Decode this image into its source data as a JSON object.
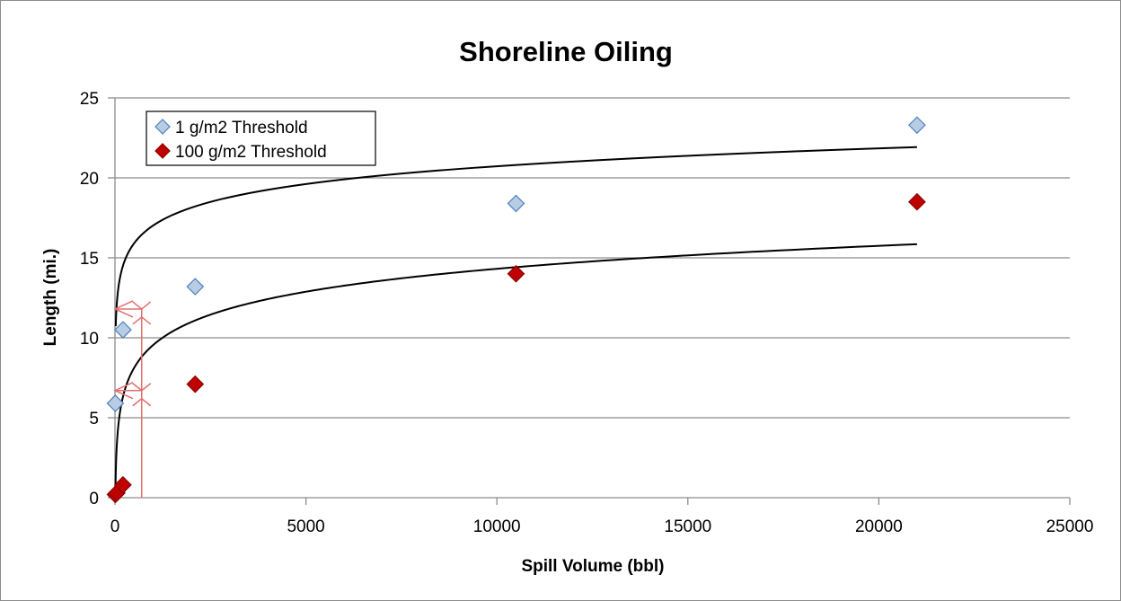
{
  "chart_data": {
    "type": "scatter",
    "title": "Shoreline Oiling",
    "xlabel": "Spill Volume (bbl)",
    "ylabel": "Length (mi.)",
    "xlim": [
      0,
      25000
    ],
    "ylim": [
      0,
      25
    ],
    "xticks": [
      0,
      5000,
      10000,
      15000,
      20000,
      25000
    ],
    "yticks": [
      0,
      5,
      10,
      15,
      20,
      25
    ],
    "grid": "horizontal",
    "legend_position": "top-left",
    "series": [
      {
        "name": "1 g/m2 Threshold",
        "color": "#b8cce4",
        "stroke": "#4f81bd",
        "marker": "diamond",
        "points": [
          [
            10,
            5.9
          ],
          [
            210,
            10.5
          ],
          [
            2100,
            13.2
          ],
          [
            10500,
            18.4
          ],
          [
            21000,
            23.3
          ]
        ],
        "trendline": {
          "type": "logarithmic",
          "a": 1.61,
          "b": 5.9,
          "x_from": 20,
          "x_to": 21000
        }
      },
      {
        "name": "100 g/m2 Threshold",
        "color": "#c00000",
        "stroke": "#8b0000",
        "marker": "diamond",
        "points": [
          [
            10,
            0.2
          ],
          [
            50,
            0.3
          ],
          [
            210,
            0.8
          ],
          [
            2100,
            7.1
          ],
          [
            10500,
            14.0
          ],
          [
            21000,
            18.5
          ]
        ],
        "trendline": {
          "type": "logarithmic",
          "a": 2.07,
          "b": -4.75,
          "x_from": 10,
          "x_to": 21000
        }
      }
    ],
    "annotations": {
      "type": "arrows",
      "color": "#e07070",
      "x": 700,
      "y_levels": [
        11.8,
        6.7
      ]
    }
  }
}
